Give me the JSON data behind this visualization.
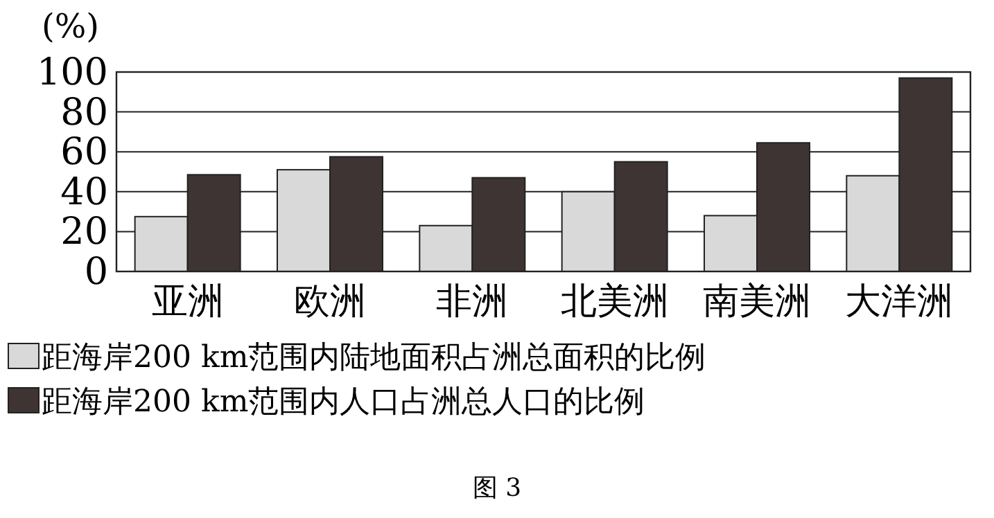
{
  "chart_data": {
    "type": "bar",
    "ylabel": "(%)",
    "categories": [
      "亚洲",
      "欧洲",
      "非洲",
      "北美洲",
      "南美洲",
      "大洋洲"
    ],
    "series": [
      {
        "name": "距海岸200 km范围内陆地面积占洲总面积的比例",
        "color": "#d9d9d9",
        "values": [
          27.5,
          51,
          23,
          40,
          28,
          48
        ]
      },
      {
        "name": "距海岸200 km范围内人口占洲总人口的比例",
        "color": "#3e3433",
        "values": [
          48.5,
          57.5,
          47,
          55,
          64.5,
          97
        ]
      }
    ],
    "ylim": [
      0,
      100
    ],
    "yticks": [
      0,
      20,
      40,
      60,
      80,
      100
    ],
    "grid": "y",
    "legend": "bottom",
    "annotations": [
      "图 3"
    ]
  }
}
